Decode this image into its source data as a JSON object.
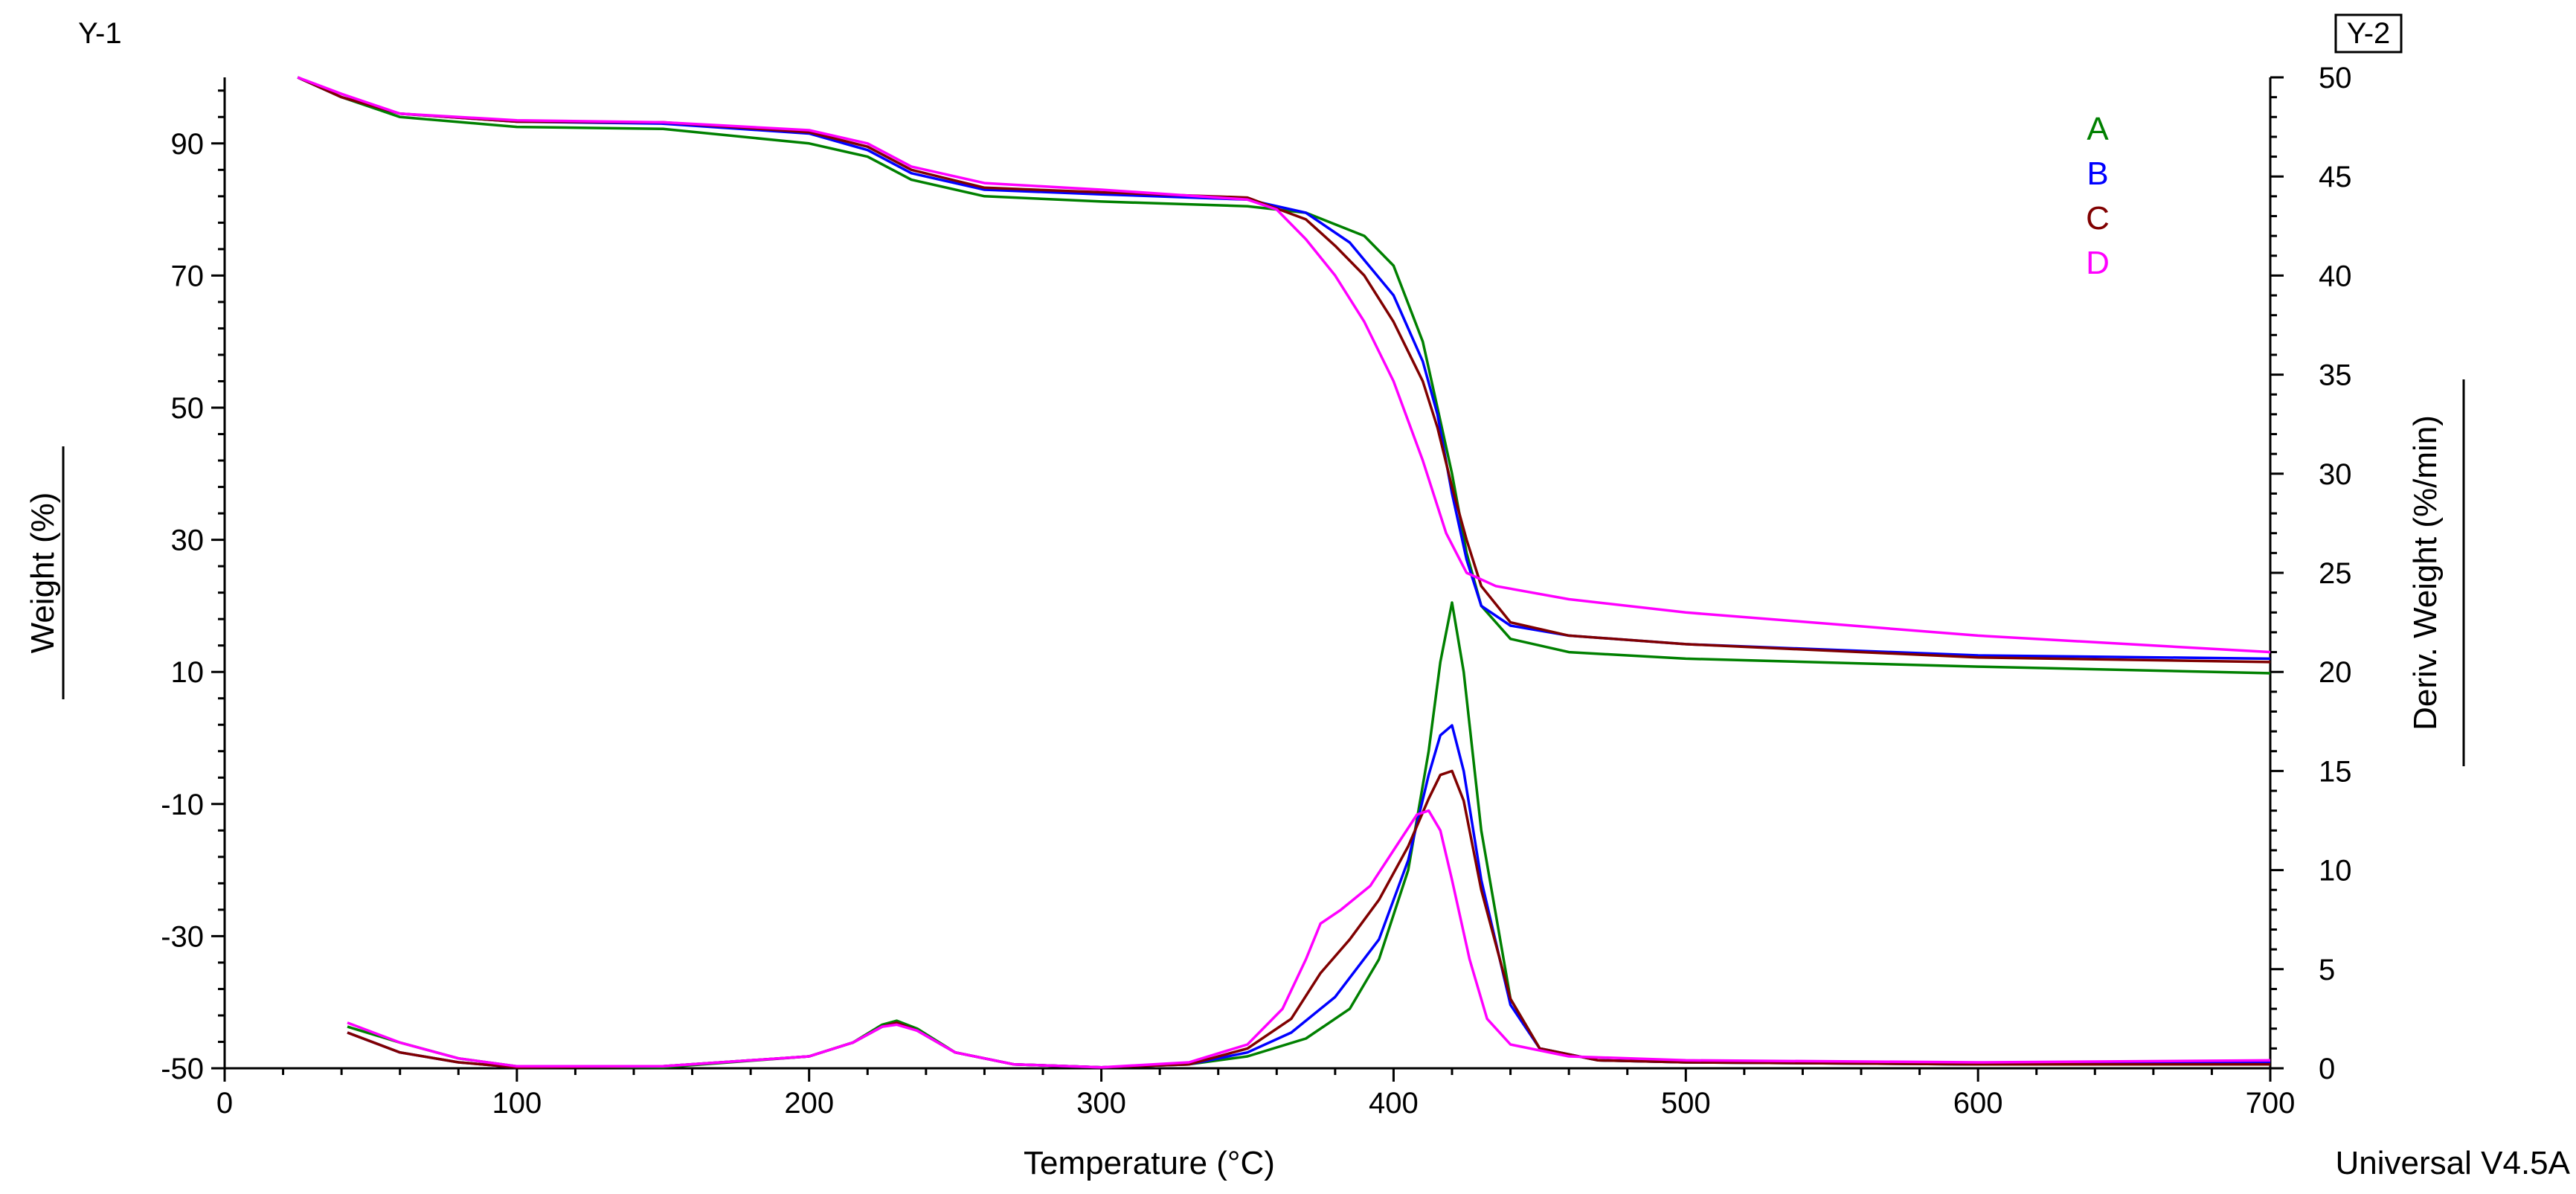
{
  "chart_data": {
    "type": "line",
    "y1_label": "Y-1",
    "y2_label": "Y-2",
    "xlabel": "Temperature (°C)",
    "ylabel": "Weight (%)",
    "y2label": "Deriv. Weight (%/min)",
    "footer": "Universal V4.5A",
    "xlim": [
      0,
      700
    ],
    "ylim": [
      -50,
      100
    ],
    "y2lim": [
      0,
      50
    ],
    "x_ticks": [
      0,
      100,
      200,
      300,
      400,
      500,
      600,
      700
    ],
    "y_ticks": [
      -50,
      -30,
      -10,
      10,
      30,
      50,
      70,
      90
    ],
    "y2_ticks": [
      0,
      5,
      10,
      15,
      20,
      25,
      30,
      35,
      40,
      45,
      50
    ],
    "grid": false,
    "legend_position": "top-right",
    "series": [
      {
        "name": "A",
        "color": "#008000",
        "weight": [
          [
            25,
            100
          ],
          [
            40,
            97
          ],
          [
            60,
            94
          ],
          [
            100,
            92.5
          ],
          [
            150,
            92.2
          ],
          [
            200,
            90
          ],
          [
            220,
            88
          ],
          [
            235,
            84.5
          ],
          [
            260,
            82
          ],
          [
            300,
            81.2
          ],
          [
            350,
            80.5
          ],
          [
            370,
            79.5
          ],
          [
            390,
            76
          ],
          [
            400,
            71.5
          ],
          [
            410,
            60
          ],
          [
            415,
            50
          ],
          [
            420,
            40
          ],
          [
            425,
            28
          ],
          [
            430,
            20
          ],
          [
            440,
            15
          ],
          [
            460,
            13
          ],
          [
            500,
            12
          ],
          [
            600,
            10.8
          ],
          [
            700,
            9.8
          ]
        ],
        "deriv": [
          [
            42,
            2.1
          ],
          [
            60,
            1.3
          ],
          [
            80,
            0.5
          ],
          [
            100,
            0.1
          ],
          [
            150,
            0.05
          ],
          [
            200,
            0.6
          ],
          [
            215,
            1.3
          ],
          [
            225,
            2.2
          ],
          [
            230,
            2.4
          ],
          [
            237,
            2.0
          ],
          [
            250,
            0.8
          ],
          [
            270,
            0.2
          ],
          [
            300,
            0.05
          ],
          [
            330,
            0.2
          ],
          [
            350,
            0.6
          ],
          [
            370,
            1.5
          ],
          [
            385,
            3.0
          ],
          [
            395,
            5.5
          ],
          [
            405,
            10
          ],
          [
            412,
            16
          ],
          [
            416,
            20.5
          ],
          [
            420,
            23.5
          ],
          [
            424,
            20
          ],
          [
            430,
            12
          ],
          [
            440,
            3.5
          ],
          [
            450,
            1.0
          ],
          [
            470,
            0.4
          ],
          [
            500,
            0.3
          ],
          [
            600,
            0.2
          ],
          [
            700,
            0.2
          ]
        ]
      },
      {
        "name": "B",
        "color": "#0000ff",
        "weight": [
          [
            25,
            100
          ],
          [
            40,
            97
          ],
          [
            60,
            94.5
          ],
          [
            100,
            93.3
          ],
          [
            150,
            93
          ],
          [
            200,
            91.5
          ],
          [
            220,
            89
          ],
          [
            235,
            85.5
          ],
          [
            260,
            83
          ],
          [
            300,
            82.3
          ],
          [
            350,
            81.5
          ],
          [
            370,
            79.5
          ],
          [
            385,
            75
          ],
          [
            400,
            67
          ],
          [
            410,
            57
          ],
          [
            415,
            49
          ],
          [
            420,
            37
          ],
          [
            425,
            27
          ],
          [
            430,
            20
          ],
          [
            440,
            17
          ],
          [
            460,
            15.5
          ],
          [
            500,
            14.2
          ],
          [
            600,
            12.5
          ],
          [
            700,
            12
          ]
        ],
        "deriv": [
          [
            42,
            1.8
          ],
          [
            60,
            0.8
          ],
          [
            80,
            0.3
          ],
          [
            100,
            0.05
          ],
          [
            150,
            0.1
          ],
          [
            200,
            0.6
          ],
          [
            215,
            1.3
          ],
          [
            225,
            2.1
          ],
          [
            230,
            2.3
          ],
          [
            237,
            1.9
          ],
          [
            250,
            0.8
          ],
          [
            270,
            0.2
          ],
          [
            300,
            0.05
          ],
          [
            330,
            0.2
          ],
          [
            350,
            0.8
          ],
          [
            365,
            1.8
          ],
          [
            380,
            3.6
          ],
          [
            395,
            6.5
          ],
          [
            405,
            10.5
          ],
          [
            412,
            14.8
          ],
          [
            416,
            16.8
          ],
          [
            420,
            17.3
          ],
          [
            424,
            15
          ],
          [
            430,
            9.5
          ],
          [
            440,
            3.2
          ],
          [
            450,
            1.0
          ],
          [
            470,
            0.4
          ],
          [
            500,
            0.3
          ],
          [
            600,
            0.2
          ],
          [
            700,
            0.3
          ]
        ]
      },
      {
        "name": "C",
        "color": "#800000",
        "weight": [
          [
            25,
            100
          ],
          [
            40,
            97
          ],
          [
            60,
            94.5
          ],
          [
            100,
            93.3
          ],
          [
            150,
            93.2
          ],
          [
            200,
            91.7
          ],
          [
            220,
            89.5
          ],
          [
            235,
            86
          ],
          [
            260,
            83.3
          ],
          [
            300,
            82.6
          ],
          [
            350,
            81.8
          ],
          [
            370,
            78.5
          ],
          [
            380,
            74.5
          ],
          [
            390,
            70
          ],
          [
            400,
            63
          ],
          [
            410,
            54
          ],
          [
            415,
            47
          ],
          [
            420,
            38
          ],
          [
            425,
            30
          ],
          [
            430,
            23
          ],
          [
            440,
            17.5
          ],
          [
            460,
            15.5
          ],
          [
            500,
            14.2
          ],
          [
            600,
            12.2
          ],
          [
            700,
            11.5
          ]
        ],
        "deriv": [
          [
            42,
            1.8
          ],
          [
            60,
            0.8
          ],
          [
            80,
            0.3
          ],
          [
            100,
            0.05
          ],
          [
            150,
            0.1
          ],
          [
            200,
            0.6
          ],
          [
            215,
            1.3
          ],
          [
            225,
            2.1
          ],
          [
            230,
            2.3
          ],
          [
            237,
            1.9
          ],
          [
            250,
            0.8
          ],
          [
            270,
            0.2
          ],
          [
            300,
            0.05
          ],
          [
            330,
            0.2
          ],
          [
            350,
            1.0
          ],
          [
            365,
            2.5
          ],
          [
            375,
            4.8
          ],
          [
            385,
            6.5
          ],
          [
            395,
            8.5
          ],
          [
            405,
            11.2
          ],
          [
            412,
            13.6
          ],
          [
            416,
            14.8
          ],
          [
            420,
            15
          ],
          [
            424,
            13.5
          ],
          [
            430,
            9
          ],
          [
            440,
            3.5
          ],
          [
            450,
            1.0
          ],
          [
            470,
            0.4
          ],
          [
            500,
            0.3
          ],
          [
            600,
            0.2
          ],
          [
            700,
            0.2
          ]
        ]
      },
      {
        "name": "D",
        "color": "#ff00ff",
        "weight": [
          [
            25,
            100
          ],
          [
            40,
            97.5
          ],
          [
            60,
            94.5
          ],
          [
            100,
            93.5
          ],
          [
            150,
            93.2
          ],
          [
            200,
            92
          ],
          [
            220,
            90
          ],
          [
            235,
            86.5
          ],
          [
            260,
            84
          ],
          [
            300,
            83
          ],
          [
            350,
            81.5
          ],
          [
            360,
            80
          ],
          [
            370,
            75.5
          ],
          [
            380,
            70
          ],
          [
            390,
            63
          ],
          [
            400,
            54
          ],
          [
            410,
            42
          ],
          [
            418,
            31
          ],
          [
            425,
            25
          ],
          [
            435,
            23
          ],
          [
            460,
            21
          ],
          [
            500,
            19
          ],
          [
            600,
            15.5
          ],
          [
            700,
            13
          ]
        ],
        "deriv": [
          [
            42,
            2.3
          ],
          [
            60,
            1.3
          ],
          [
            80,
            0.5
          ],
          [
            100,
            0.1
          ],
          [
            150,
            0.1
          ],
          [
            200,
            0.6
          ],
          [
            215,
            1.3
          ],
          [
            225,
            2.1
          ],
          [
            230,
            2.2
          ],
          [
            237,
            1.9
          ],
          [
            250,
            0.8
          ],
          [
            270,
            0.2
          ],
          [
            300,
            0.05
          ],
          [
            330,
            0.3
          ],
          [
            350,
            1.2
          ],
          [
            362,
            3.0
          ],
          [
            370,
            5.5
          ],
          [
            375,
            7.3
          ],
          [
            382,
            8.0
          ],
          [
            392,
            9.2
          ],
          [
            400,
            11
          ],
          [
            408,
            12.8
          ],
          [
            412,
            13
          ],
          [
            416,
            12
          ],
          [
            420,
            9.5
          ],
          [
            426,
            5.5
          ],
          [
            432,
            2.5
          ],
          [
            440,
            1.2
          ],
          [
            460,
            0.6
          ],
          [
            500,
            0.4
          ],
          [
            600,
            0.3
          ],
          [
            700,
            0.4
          ]
        ]
      }
    ]
  }
}
